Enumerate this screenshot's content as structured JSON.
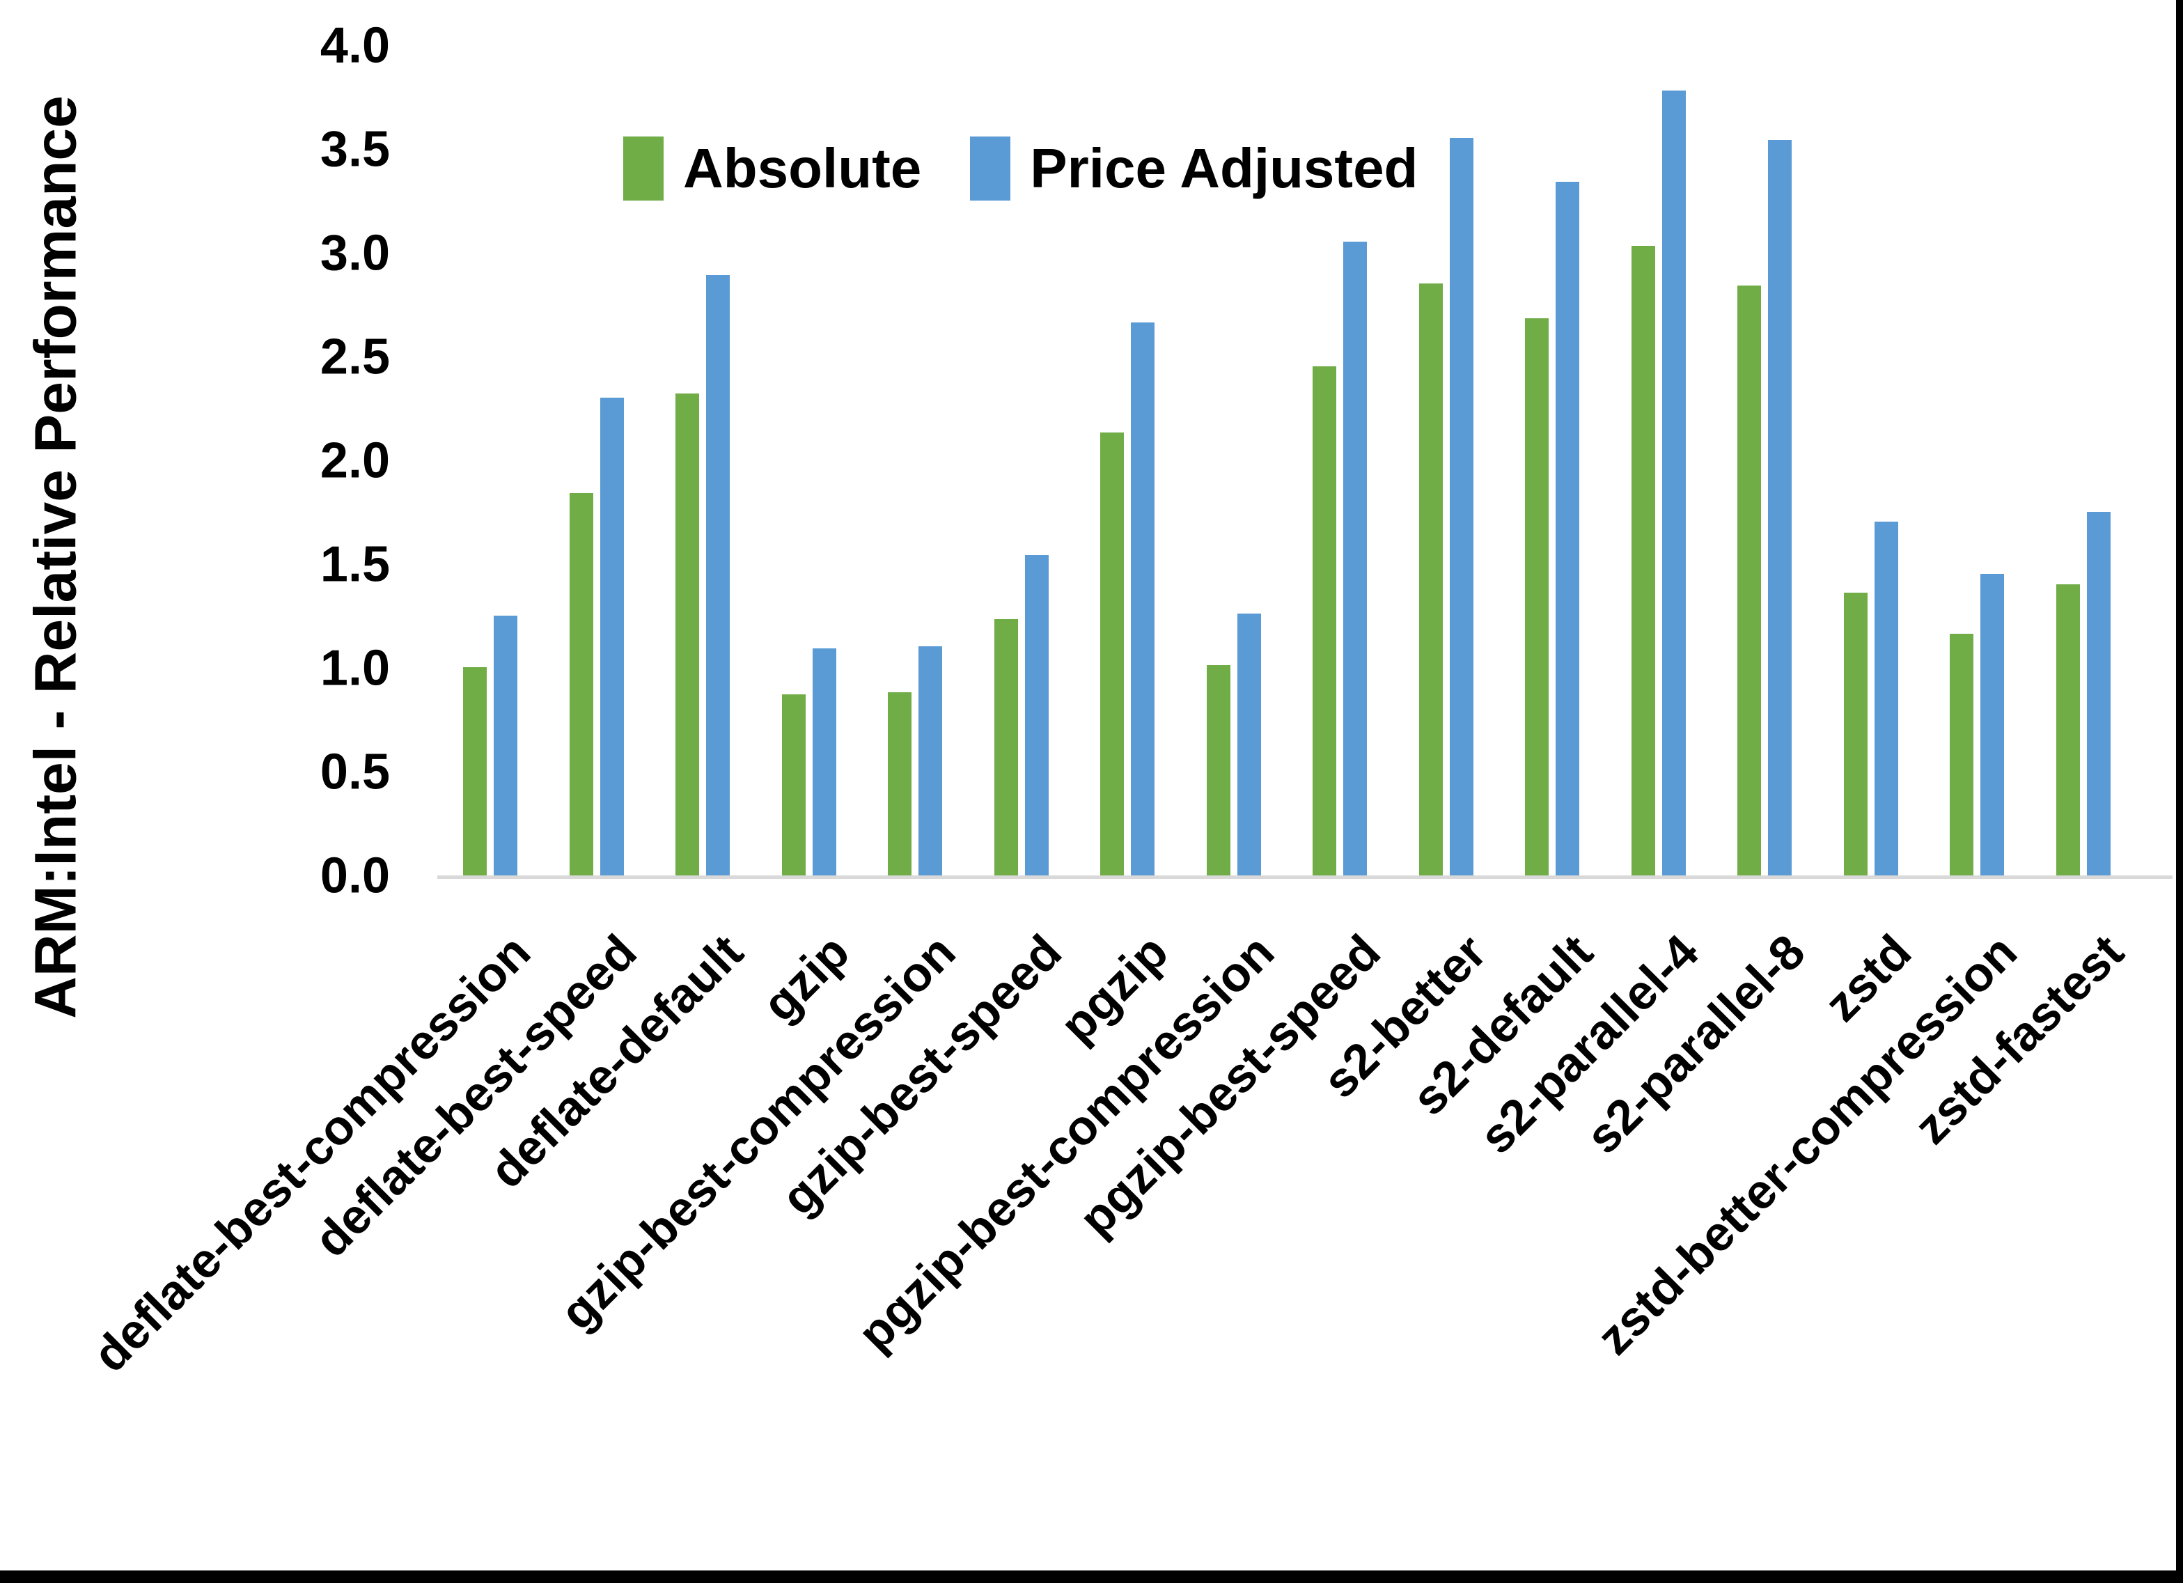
{
  "chart_data": {
    "type": "bar",
    "title": "",
    "xlabel": "",
    "ylabel": "ARM:Intel - Relative Performance",
    "ylim": [
      0.0,
      4.0
    ],
    "ytick_step": 0.5,
    "ytick_labels": [
      "0.0",
      "0.5",
      "1.0",
      "1.5",
      "2.0",
      "2.5",
      "3.0",
      "3.5",
      "4.0"
    ],
    "grid": false,
    "legend_position": "top-center",
    "axis_line_color": "#d9d9d9",
    "background_color": "#ffffff",
    "categories": [
      "deflate-best-compression",
      "deflate-best-speed",
      "deflate-default",
      "gzip",
      "gzip-best-compression",
      "gzip-best-speed",
      "pgzip",
      "pgzip-best-compression",
      "pgzip-best-speed",
      "s2-better",
      "s2-default",
      "s2-parallel-4",
      "s2-parallel-8",
      "zstd",
      "zstd-better-compression",
      "zstd-fastest"
    ],
    "series": [
      {
        "name": "Absolute",
        "color": "#70AD47",
        "values": [
          1.01,
          1.85,
          2.33,
          0.88,
          0.89,
          1.24,
          2.14,
          1.02,
          2.46,
          2.86,
          2.69,
          3.04,
          2.85,
          1.37,
          1.17,
          1.41
        ]
      },
      {
        "name": "Price Adjusted",
        "color": "#5B9BD5",
        "values": [
          1.26,
          2.31,
          2.9,
          1.1,
          1.11,
          1.55,
          2.67,
          1.27,
          3.06,
          3.56,
          3.35,
          3.79,
          3.55,
          1.71,
          1.46,
          1.76
        ]
      }
    ]
  }
}
